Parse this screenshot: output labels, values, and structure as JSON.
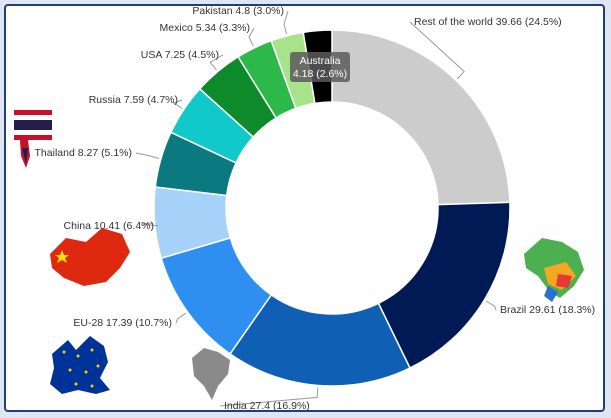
{
  "chart_data": {
    "type": "pie",
    "variant": "donut",
    "title": "",
    "slices": [
      {
        "name": "Rest of the world",
        "value": 39.66,
        "percent": 24.5,
        "label": "Rest of the world 39.66 (24.5%)",
        "color": "#cccccc"
      },
      {
        "name": "Brazil",
        "value": 29.61,
        "percent": 18.3,
        "label": "Brazil 29.61 (18.3%)",
        "color": "#001a55"
      },
      {
        "name": "India",
        "value": 27.4,
        "percent": 16.9,
        "label": "India 27.4 (16.9%)",
        "color": "#0f5fb5"
      },
      {
        "name": "EU-28",
        "value": 17.39,
        "percent": 10.7,
        "label": "EU-28 17.39 (10.7%)",
        "color": "#2e8ff0"
      },
      {
        "name": "China",
        "value": 10.41,
        "percent": 6.4,
        "label": "China 10.41 (6.4%)",
        "color": "#a6d2fa"
      },
      {
        "name": "Thailand",
        "value": 8.27,
        "percent": 5.1,
        "label": "Thailand 8.27 (5.1%)",
        "color": "#0a7a80"
      },
      {
        "name": "Russia",
        "value": 7.59,
        "percent": 4.7,
        "label": "Russia 7.59 (4.7%)",
        "color": "#12c9c9"
      },
      {
        "name": "USA",
        "value": 7.25,
        "percent": 4.5,
        "label": "USA 7.25 (4.5%)",
        "color": "#0d8a2a"
      },
      {
        "name": "Mexico",
        "value": 5.34,
        "percent": 3.3,
        "label": "Mexico 5.34 (3.3%)",
        "color": "#2db84a"
      },
      {
        "name": "Pakistan",
        "value": 4.8,
        "percent": 3.0,
        "label": "Pakistan 4.8 (3.0%)",
        "color": "#a6e38a"
      },
      {
        "name": "Australia",
        "value": 4.18,
        "percent": 2.6,
        "label": "Australia 4.18 (2.6%)",
        "color": "#000000"
      }
    ],
    "highlighted": "Australia",
    "tooltip": {
      "line1": "Australia",
      "line2": "4.18 (2.6%)"
    },
    "legend": "none",
    "flag_icons": [
      "thailand-flag-icon",
      "china-map-icon",
      "eu-map-icon",
      "india-map-icon",
      "brazil-map-icon"
    ]
  }
}
